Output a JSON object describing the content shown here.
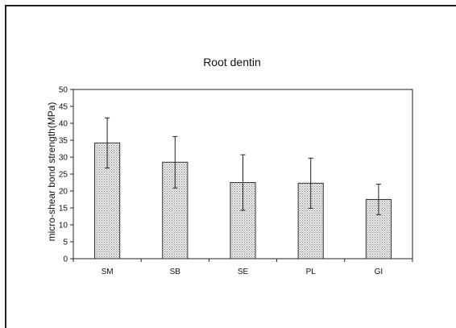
{
  "chart_data": {
    "type": "bar",
    "title": "Root dentin",
    "xlabel": "",
    "ylabel": "micro-shear bond strength(MPa)",
    "categories": [
      "SM",
      "SB",
      "SE",
      "PL",
      "GI"
    ],
    "values": [
      34.2,
      28.5,
      22.5,
      22.3,
      17.5
    ],
    "errors": [
      7.4,
      7.6,
      8.2,
      7.4,
      4.5
    ],
    "ylim": [
      0,
      50
    ],
    "yticks": [
      0,
      5,
      10,
      15,
      20,
      25,
      30,
      35,
      40,
      45,
      50
    ],
    "grid": false,
    "legend": "none",
    "colors": {
      "bar_fill": "#d6d6d6",
      "bar_stroke": "#333333",
      "axis": "#222222",
      "background": "#ffffff"
    }
  }
}
